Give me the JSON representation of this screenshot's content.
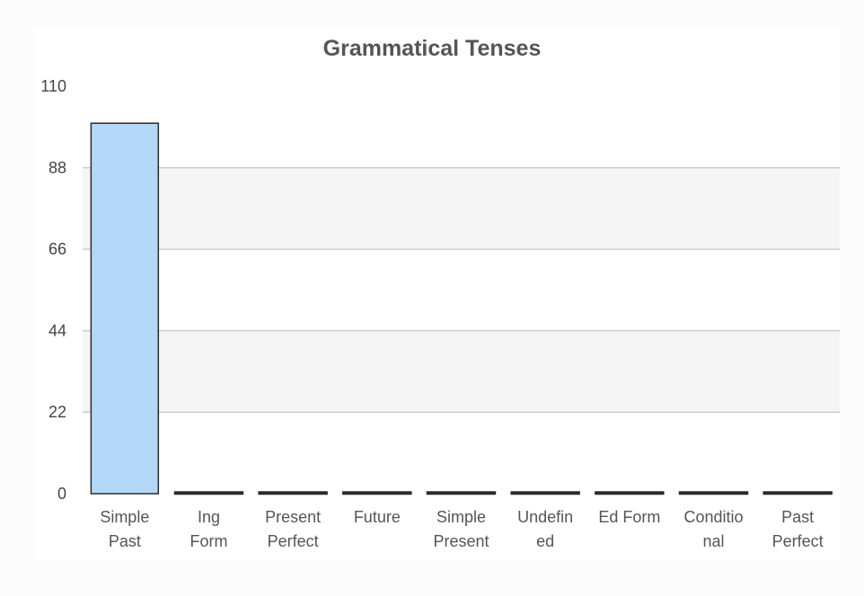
{
  "chart_data": {
    "type": "bar",
    "title": "Grammatical Tenses",
    "xlabel": "",
    "ylabel": "",
    "ylim": [
      0,
      110
    ],
    "yticks": [
      0,
      22,
      44,
      66,
      88,
      110
    ],
    "grid": true,
    "categories": [
      "Simple Past",
      "Ing Form",
      "Present Perfect",
      "Future",
      "Simple Present",
      "Undefined",
      "Ed Form",
      "Conditional",
      "Past Perfect"
    ],
    "category_label_lines": [
      [
        "Simple",
        "Past"
      ],
      [
        "Ing",
        "Form"
      ],
      [
        "Present",
        "Perfect"
      ],
      [
        "Future"
      ],
      [
        "Simple",
        "Present"
      ],
      [
        "Undefin",
        "ed"
      ],
      [
        "Ed Form"
      ],
      [
        "Conditio",
        "nal"
      ],
      [
        "Past",
        "Perfect"
      ]
    ],
    "values": [
      100,
      0,
      0,
      0,
      0,
      0,
      0,
      0,
      0
    ],
    "colors": {
      "bar_fill": "#b3d8f7",
      "bar_stroke": "#2b2b2b",
      "grid": "#cccccc",
      "band": "#f5f5f5"
    }
  }
}
